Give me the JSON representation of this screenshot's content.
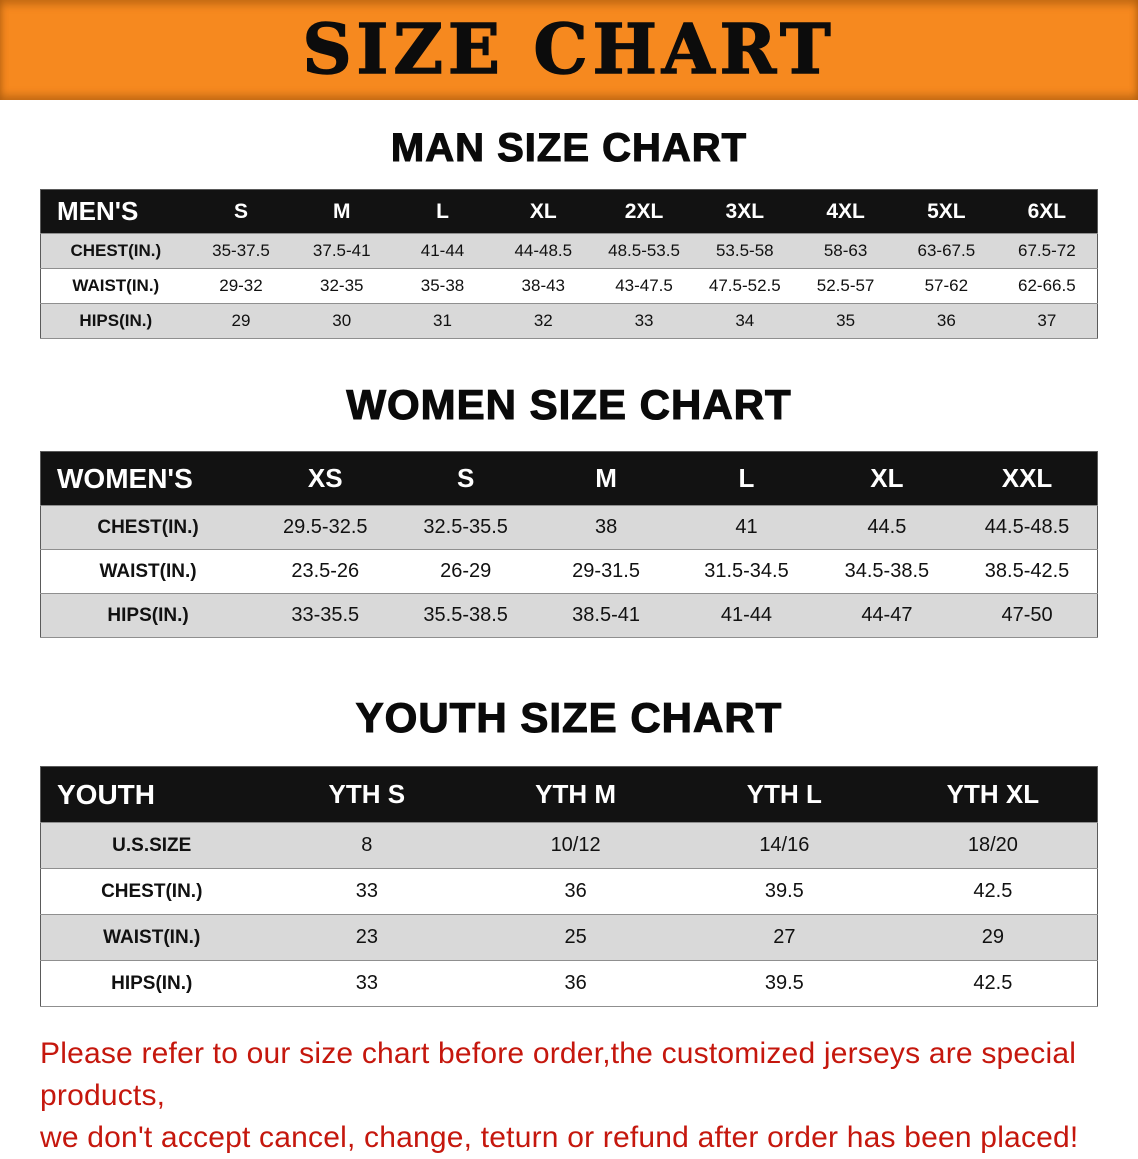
{
  "banner": {
    "title": "SIZE CHART",
    "bg_color": "#F6891F"
  },
  "sections": [
    {
      "heading": "MAN SIZE CHART",
      "table": {
        "header": [
          "MEN'S",
          "S",
          "M",
          "L",
          "XL",
          "2XL",
          "3XL",
          "4XL",
          "5XL",
          "6XL"
        ],
        "rows": [
          {
            "label": "CHEST(IN.)",
            "values": [
              "35-37.5",
              "37.5-41",
              "41-44",
              "44-48.5",
              "48.5-53.5",
              "53.5-58",
              "58-63",
              "63-67.5",
              "67.5-72"
            ]
          },
          {
            "label": "WAIST(IN.)",
            "values": [
              "29-32",
              "32-35",
              "35-38",
              "38-43",
              "43-47.5",
              "47.5-52.5",
              "52.5-57",
              "57-62",
              "62-66.5"
            ]
          },
          {
            "label": "HIPS(IN.)",
            "values": [
              "29",
              "30",
              "31",
              "32",
              "33",
              "34",
              "35",
              "36",
              "37"
            ]
          }
        ]
      }
    },
    {
      "heading": "WOMEN SIZE CHART",
      "table": {
        "header": [
          "WOMEN'S",
          "XS",
          "S",
          "M",
          "L",
          "XL",
          "XXL"
        ],
        "rows": [
          {
            "label": "CHEST(IN.)",
            "values": [
              "29.5-32.5",
              "32.5-35.5",
              "38",
              "41",
              "44.5",
              "44.5-48.5"
            ]
          },
          {
            "label": "WAIST(IN.)",
            "values": [
              "23.5-26",
              "26-29",
              "29-31.5",
              "31.5-34.5",
              "34.5-38.5",
              "38.5-42.5"
            ]
          },
          {
            "label": "HIPS(IN.)",
            "values": [
              "33-35.5",
              "35.5-38.5",
              "38.5-41",
              "41-44",
              "44-47",
              "47-50"
            ]
          }
        ]
      }
    },
    {
      "heading": "YOUTH SIZE CHART",
      "table": {
        "header": [
          "YOUTH",
          "YTH S",
          "YTH M",
          "YTH L",
          "YTH XL"
        ],
        "rows": [
          {
            "label": "U.S.SIZE",
            "values": [
              "8",
              "10/12",
              "14/16",
              "18/20"
            ]
          },
          {
            "label": "CHEST(IN.)",
            "values": [
              "33",
              "36",
              "39.5",
              "42.5"
            ]
          },
          {
            "label": "WAIST(IN.)",
            "values": [
              "23",
              "25",
              "27",
              "29"
            ]
          },
          {
            "label": "HIPS(IN.)",
            "values": [
              "33",
              "36",
              "39.5",
              "42.5"
            ]
          }
        ]
      }
    }
  ],
  "footer": {
    "line1": "Please refer to our size chart before order,the customized jerseys are special products,",
    "line2": "we don't accept cancel, change, teturn or refund after order has been placed!",
    "text_color": "#c5170d"
  }
}
